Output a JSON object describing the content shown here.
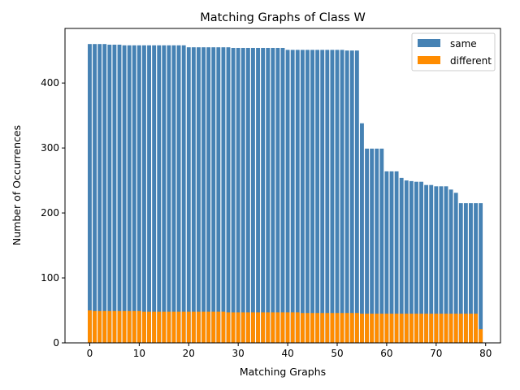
{
  "chart_data": {
    "type": "bar",
    "title": "Matching Graphs of Class W",
    "xlabel": "Matching Graphs",
    "ylabel": "Number of Occurrences",
    "xlim": [
      -5,
      83
    ],
    "ylim": [
      0,
      484
    ],
    "xticks": [
      0,
      10,
      20,
      30,
      40,
      50,
      60,
      70,
      80
    ],
    "yticks": [
      0,
      100,
      200,
      300,
      400
    ],
    "legend_position": "top-right",
    "series": [
      {
        "name": "same",
        "color": "#4682b4",
        "values": [
          460,
          460,
          460,
          460,
          459,
          459,
          459,
          458,
          458,
          458,
          458,
          458,
          458,
          458,
          458,
          458,
          458,
          458,
          458,
          458,
          455,
          455,
          455,
          455,
          455,
          455,
          455,
          455,
          455,
          454,
          454,
          454,
          454,
          454,
          454,
          454,
          454,
          454,
          454,
          454,
          451,
          451,
          451,
          451,
          451,
          451,
          451,
          451,
          451,
          451,
          451,
          451,
          450,
          450,
          450,
          338,
          299,
          299,
          299,
          299,
          264,
          264,
          264,
          254,
          250,
          249,
          248,
          248,
          243,
          243,
          241,
          241,
          241,
          236,
          231,
          215,
          215,
          215,
          215,
          215
        ]
      },
      {
        "name": "different",
        "color": "#ff8c00",
        "values": [
          50,
          49,
          49,
          49,
          49,
          49,
          49,
          49,
          49,
          49,
          49,
          48,
          48,
          48,
          48,
          48,
          48,
          48,
          48,
          48,
          48,
          48,
          48,
          48,
          48,
          48,
          48,
          48,
          47,
          47,
          47,
          47,
          47,
          47,
          47,
          47,
          47,
          47,
          47,
          47,
          47,
          47,
          47,
          46,
          46,
          46,
          46,
          46,
          46,
          46,
          46,
          46,
          46,
          46,
          46,
          45,
          45,
          45,
          45,
          45,
          45,
          45,
          45,
          45,
          45,
          45,
          45,
          45,
          45,
          45,
          45,
          45,
          45,
          45,
          45,
          45,
          45,
          45,
          45,
          21
        ]
      }
    ]
  }
}
